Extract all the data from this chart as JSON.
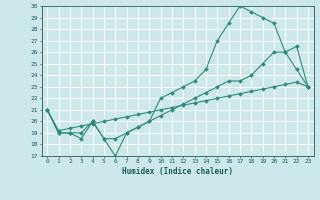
{
  "xlabel": "Humidex (Indice chaleur)",
  "bg_color": "#cce8ea",
  "line_color": "#2e8b7a",
  "grid_color": "#ffffff",
  "xlim": [
    -0.5,
    23.5
  ],
  "ylim": [
    17,
    30
  ],
  "xticks": [
    0,
    1,
    2,
    3,
    4,
    5,
    6,
    7,
    8,
    9,
    10,
    11,
    12,
    13,
    14,
    15,
    16,
    17,
    18,
    19,
    20,
    21,
    22,
    23
  ],
  "yticks": [
    17,
    18,
    19,
    20,
    21,
    22,
    23,
    24,
    25,
    26,
    27,
    28,
    29,
    30
  ],
  "line1_x": [
    0,
    1,
    2,
    3,
    4,
    5,
    6,
    7,
    8,
    9,
    10,
    11,
    12,
    13,
    14,
    15,
    16,
    17,
    18,
    19,
    20,
    21,
    22,
    23
  ],
  "line1_y": [
    21,
    19,
    19,
    18.5,
    20,
    18.5,
    18.5,
    19,
    19.5,
    20,
    20.5,
    21,
    21.5,
    22,
    22.5,
    23,
    23.5,
    23.5,
    24,
    25,
    26,
    26,
    26.5,
    23
  ],
  "line2_x": [
    0,
    1,
    2,
    3,
    4,
    5,
    6,
    7,
    8,
    9,
    10,
    11,
    12,
    13,
    14,
    15,
    16,
    17,
    18,
    19,
    20,
    21,
    22,
    23
  ],
  "line2_y": [
    21,
    19,
    19,
    19,
    20,
    18.5,
    17,
    19,
    19.5,
    20,
    22,
    22.5,
    23,
    23.5,
    24.5,
    27,
    28.5,
    30,
    29.5,
    29,
    28.5,
    26,
    24.5,
    23
  ],
  "line3_x": [
    0,
    1,
    2,
    3,
    4,
    5,
    6,
    7,
    8,
    9,
    10,
    11,
    12,
    13,
    14,
    15,
    16,
    17,
    18,
    19,
    20,
    21,
    22,
    23
  ],
  "line3_y": [
    21,
    19.2,
    19.4,
    19.6,
    19.8,
    20.0,
    20.2,
    20.4,
    20.6,
    20.8,
    21.0,
    21.2,
    21.4,
    21.6,
    21.8,
    22.0,
    22.2,
    22.4,
    22.6,
    22.8,
    23.0,
    23.2,
    23.4,
    23.0
  ]
}
